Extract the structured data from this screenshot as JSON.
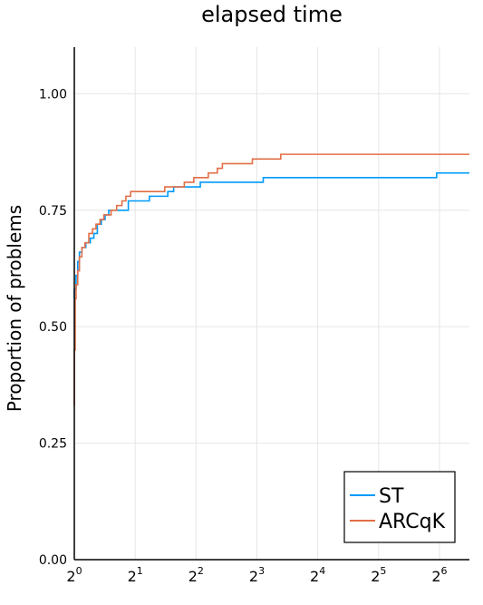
{
  "chart_data": {
    "type": "line",
    "step": true,
    "title": "elapsed time",
    "ylabel": "Proportion of problems",
    "xlabel": "",
    "x_scale": "log2",
    "xlim": [
      1,
      90
    ],
    "ylim": [
      0,
      1.1
    ],
    "grid": true,
    "legend_position": "bottom-right",
    "x_ticks": [
      {
        "base": "2",
        "exp": "0",
        "value": 1
      },
      {
        "base": "2",
        "exp": "1",
        "value": 2
      },
      {
        "base": "2",
        "exp": "2",
        "value": 4
      },
      {
        "base": "2",
        "exp": "3",
        "value": 8
      },
      {
        "base": "2",
        "exp": "4",
        "value": 16
      },
      {
        "base": "2",
        "exp": "5",
        "value": 32
      },
      {
        "base": "2",
        "exp": "6",
        "value": 64
      }
    ],
    "y_ticks": [
      {
        "value": 0,
        "label": "0.00"
      },
      {
        "value": 0.25,
        "label": "0.25"
      },
      {
        "value": 0.5,
        "label": "0.50"
      },
      {
        "value": 0.75,
        "label": "0.75"
      },
      {
        "value": 1.0,
        "label": "1.00"
      }
    ],
    "series": [
      {
        "name": "ST",
        "color": "#009af9",
        "points": [
          [
            1.0,
            0.56
          ],
          [
            1.0,
            0.58
          ],
          [
            1.02,
            0.61
          ],
          [
            1.04,
            0.64
          ],
          [
            1.06,
            0.66
          ],
          [
            1.09,
            0.67
          ],
          [
            1.14,
            0.68
          ],
          [
            1.2,
            0.69
          ],
          [
            1.25,
            0.7
          ],
          [
            1.3,
            0.72
          ],
          [
            1.36,
            0.73
          ],
          [
            1.42,
            0.74
          ],
          [
            1.48,
            0.75
          ],
          [
            1.85,
            0.77
          ],
          [
            2.35,
            0.78
          ],
          [
            2.9,
            0.79
          ],
          [
            3.1,
            0.8
          ],
          [
            3.9,
            0.8
          ],
          [
            4.2,
            0.81
          ],
          [
            8.6,
            0.82
          ],
          [
            32.0,
            0.82
          ],
          [
            62.0,
            0.83
          ],
          [
            90.0,
            0.83
          ]
        ]
      },
      {
        "name": "ARCqK",
        "color": "#e26f46",
        "points": [
          [
            1.0,
            0.33
          ],
          [
            1.0,
            0.45
          ],
          [
            1.01,
            0.56
          ],
          [
            1.02,
            0.59
          ],
          [
            1.04,
            0.62
          ],
          [
            1.06,
            0.65
          ],
          [
            1.09,
            0.67
          ],
          [
            1.13,
            0.68
          ],
          [
            1.18,
            0.7
          ],
          [
            1.23,
            0.71
          ],
          [
            1.28,
            0.72
          ],
          [
            1.34,
            0.73
          ],
          [
            1.4,
            0.74
          ],
          [
            1.52,
            0.75
          ],
          [
            1.62,
            0.76
          ],
          [
            1.72,
            0.77
          ],
          [
            1.8,
            0.78
          ],
          [
            1.9,
            0.79
          ],
          [
            2.8,
            0.8
          ],
          [
            3.5,
            0.81
          ],
          [
            3.9,
            0.82
          ],
          [
            4.6,
            0.83
          ],
          [
            5.1,
            0.84
          ],
          [
            5.4,
            0.85
          ],
          [
            7.6,
            0.86
          ],
          [
            10.5,
            0.87
          ],
          [
            90.0,
            0.87
          ]
        ]
      }
    ]
  }
}
